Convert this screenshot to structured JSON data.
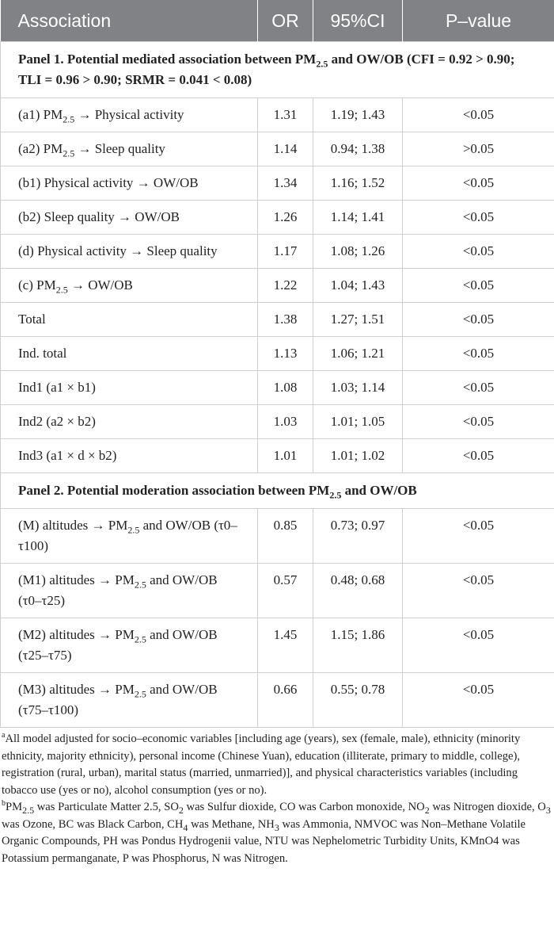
{
  "table": {
    "header": [
      "Association",
      "OR",
      "95%CI",
      "P–value"
    ],
    "panels": [
      {
        "title": [
          "Panel 1. Potential mediated association between PM",
          "2.5",
          " and OW/OB (CFI = 0.92 > 0.90; TLI = 0.96 > 0.90; SRMR = 0.041 < 0.08)"
        ],
        "rows": [
          {
            "label": [
              "(a1) PM",
              "2.5",
              " → Physical activity"
            ],
            "or": "1.31",
            "ci": "1.19; 1.43",
            "p": "<0.05"
          },
          {
            "label": [
              "(a2) PM",
              "2.5",
              " → Sleep quality"
            ],
            "or": "1.14",
            "ci": "0.94; 1.38",
            "p": ">0.05"
          },
          {
            "label": [
              "(b1) Physical activity → OW/OB"
            ],
            "or": "1.34",
            "ci": "1.16; 1.52",
            "p": "<0.05"
          },
          {
            "label": [
              "(b2) Sleep quality → OW/OB"
            ],
            "or": "1.26",
            "ci": "1.14; 1.41",
            "p": "<0.05"
          },
          {
            "label": [
              "(d) Physical activity → Sleep quality"
            ],
            "or": "1.17",
            "ci": "1.08; 1.26",
            "p": "<0.05"
          },
          {
            "label": [
              "(c) PM",
              "2.5",
              " → OW/OB"
            ],
            "or": "1.22",
            "ci": "1.04; 1.43",
            "p": "<0.05"
          },
          {
            "label": [
              "Total"
            ],
            "or": "1.38",
            "ci": "1.27; 1.51",
            "p": "<0.05"
          },
          {
            "label": [
              "Ind. total"
            ],
            "or": "1.13",
            "ci": "1.06; 1.21",
            "p": "<0.05"
          },
          {
            "label": [
              "Ind1 (a1 × b1)"
            ],
            "or": "1.08",
            "ci": "1.03; 1.14",
            "p": "<0.05"
          },
          {
            "label": [
              "Ind2 (a2 × b2)"
            ],
            "or": "1.03",
            "ci": "1.01; 1.05",
            "p": "<0.05"
          },
          {
            "label": [
              "Ind3 (a1 × d × b2)"
            ],
            "or": "1.01",
            "ci": "1.01; 1.02",
            "p": "<0.05"
          }
        ]
      },
      {
        "title": [
          "Panel 2. Potential moderation association between PM",
          "2.5",
          " and OW/OB"
        ],
        "rows": [
          {
            "label": [
              "(M) altitudes → PM",
              "2.5",
              " and OW/OB (τ0–τ100)"
            ],
            "or": "0.85",
            "ci": "0.73; 0.97",
            "p": "<0.05"
          },
          {
            "label": [
              "(M1) altitudes → PM",
              "2.5",
              " and OW/OB (τ0–τ25)"
            ],
            "or": "0.57",
            "ci": "0.48; 0.68",
            "p": "<0.05"
          },
          {
            "label": [
              "(M2) altitudes → PM",
              "2.5",
              " and OW/OB (τ25–τ75)"
            ],
            "or": "1.45",
            "ci": "1.15; 1.86",
            "p": "<0.05"
          },
          {
            "label": [
              "(M3) altitudes → PM",
              "2.5",
              " and OW/OB (τ75–τ100)"
            ],
            "or": "0.66",
            "ci": "0.55; 0.78",
            "p": "<0.05"
          }
        ]
      }
    ]
  },
  "footnotes": [
    {
      "mark": "a",
      "text": [
        "All model adjusted for socio–economic variables [including age (years), sex (female, male), ethnicity (minority ethnicity, majority ethnicity), personal income (Chinese Yuan), education (illiterate, primary to middle, college), registration (rural, urban), marital status (married, unmarried)], and physical characteristics variables (including tobacco use (yes or no), alcohol consumption (yes or no)."
      ]
    },
    {
      "mark": "b",
      "text": [
        "PM",
        "2.5",
        " was Particulate Matter 2.5, SO",
        "2",
        " was Sulfur dioxide, CO was Carbon monoxide, NO",
        "2",
        " was Nitrogen dioxide, O",
        "3",
        " was Ozone, BC was Black Carbon, CH",
        "4",
        " was Methane, NH",
        "3",
        " was Ammonia, NMVOC was Non–Methane Volatile Organic Compounds, PH was Pondus Hydrogenii value, NTU was Nephelometric Turbidity Units, KMnO4 was Potassium permanganate, P was Phosphorus, N was Nitrogen."
      ]
    }
  ]
}
